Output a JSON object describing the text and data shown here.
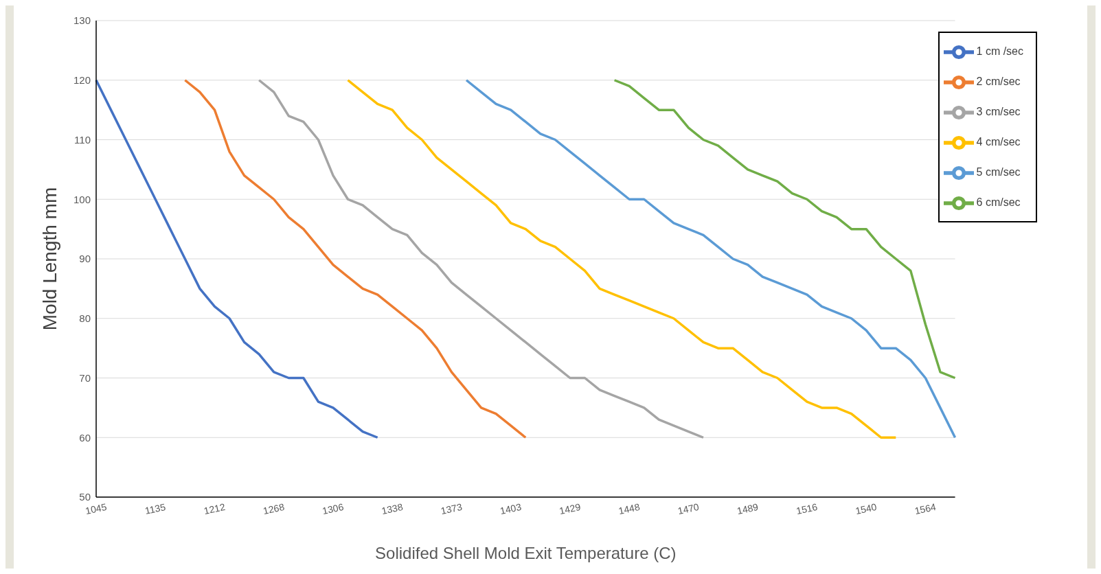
{
  "chart_data": {
    "type": "line",
    "xlabel": "Solidifed Shell Mold Exit Temperature (C)",
    "ylabel": "Mold Length mm",
    "categories": [
      "1045",
      null,
      null,
      null,
      "1135",
      null,
      null,
      null,
      "1212",
      null,
      null,
      null,
      "1268",
      null,
      null,
      null,
      "1306",
      null,
      null,
      null,
      "1338",
      null,
      null,
      null,
      "1373",
      null,
      null,
      null,
      "1403",
      null,
      null,
      null,
      "1429",
      null,
      null,
      null,
      "1448",
      null,
      null,
      null,
      "1470",
      null,
      null,
      null,
      "1489",
      null,
      null,
      null,
      "1516",
      null,
      null,
      null,
      "1540",
      null,
      null,
      null,
      "1564",
      null,
      null
    ],
    "ylim": [
      50,
      130
    ],
    "yticks": [
      50,
      60,
      70,
      80,
      90,
      100,
      110,
      120,
      130
    ],
    "grid": "y",
    "legend": "top right",
    "marker": "none",
    "line_style": "solid",
    "series": [
      {
        "name": "1 cm /sec",
        "color": "#4472c4",
        "values": [
          120,
          115,
          110,
          105,
          100,
          95,
          90,
          85,
          82,
          80,
          76,
          74,
          71,
          70,
          70,
          66,
          65,
          63,
          61,
          60,
          null,
          null,
          null,
          null,
          null,
          null,
          null,
          null,
          null,
          null,
          null,
          null,
          null,
          null,
          null,
          null,
          null,
          null,
          null,
          null,
          null,
          null,
          null,
          null,
          null,
          null,
          null,
          null,
          null,
          null,
          null,
          null,
          null,
          null,
          null,
          null,
          null,
          null,
          null
        ]
      },
      {
        "name": "2 cm/sec",
        "color": "#ed7d31",
        "values": [
          null,
          null,
          null,
          null,
          null,
          null,
          120,
          118,
          115,
          108,
          104,
          102,
          100,
          97,
          95,
          92,
          89,
          87,
          85,
          84,
          82,
          80,
          78,
          75,
          71,
          68,
          65,
          64,
          62,
          60,
          null,
          null,
          null,
          null,
          null,
          null,
          null,
          null,
          null,
          null,
          null,
          null,
          null,
          null,
          null,
          null,
          null,
          null,
          null,
          null,
          null,
          null,
          null,
          null,
          null,
          null,
          null,
          null,
          null
        ]
      },
      {
        "name": "3 cm/sec",
        "color": "#a5a5a5",
        "values": [
          null,
          null,
          null,
          null,
          null,
          null,
          null,
          null,
          null,
          null,
          null,
          120,
          118,
          114,
          113,
          110,
          104,
          100,
          99,
          97,
          95,
          94,
          91,
          89,
          86,
          84,
          82,
          80,
          78,
          76,
          74,
          72,
          70,
          70,
          68,
          67,
          66,
          65,
          63,
          62,
          61,
          60,
          null,
          null,
          null,
          null,
          null,
          null,
          null,
          null,
          null,
          null,
          null,
          null,
          null,
          null,
          null,
          null,
          null
        ]
      },
      {
        "name": "4 cm/sec",
        "color": "#ffc000",
        "values": [
          null,
          null,
          null,
          null,
          null,
          null,
          null,
          null,
          null,
          null,
          null,
          null,
          null,
          null,
          null,
          null,
          null,
          120,
          118,
          116,
          115,
          112,
          110,
          107,
          105,
          103,
          101,
          99,
          96,
          95,
          93,
          92,
          90,
          88,
          85,
          84,
          83,
          82,
          81,
          80,
          78,
          76,
          75,
          75,
          73,
          71,
          70,
          68,
          66,
          65,
          65,
          64,
          62,
          60,
          60,
          null,
          null,
          null,
          null
        ]
      },
      {
        "name": "5 cm/sec",
        "color": "#5b9bd5",
        "values": [
          null,
          null,
          null,
          null,
          null,
          null,
          null,
          null,
          null,
          null,
          null,
          null,
          null,
          null,
          null,
          null,
          null,
          null,
          null,
          null,
          null,
          null,
          null,
          null,
          null,
          120,
          118,
          116,
          115,
          113,
          111,
          110,
          108,
          106,
          104,
          102,
          100,
          100,
          98,
          96,
          95,
          94,
          92,
          90,
          89,
          87,
          86,
          85,
          84,
          82,
          81,
          80,
          78,
          75,
          75,
          73,
          70,
          65,
          60
        ]
      },
      {
        "name": "6 cm/sec",
        "color": "#70ad47",
        "values": [
          null,
          null,
          null,
          null,
          null,
          null,
          null,
          null,
          null,
          null,
          null,
          null,
          null,
          null,
          null,
          null,
          null,
          null,
          null,
          null,
          null,
          null,
          null,
          null,
          null,
          null,
          null,
          null,
          null,
          null,
          null,
          null,
          null,
          null,
          null,
          120,
          119,
          117,
          115,
          115,
          112,
          110,
          109,
          107,
          105,
          104,
          103,
          101,
          100,
          98,
          97,
          95,
          95,
          92,
          90,
          88,
          79,
          71,
          70
        ]
      }
    ]
  }
}
